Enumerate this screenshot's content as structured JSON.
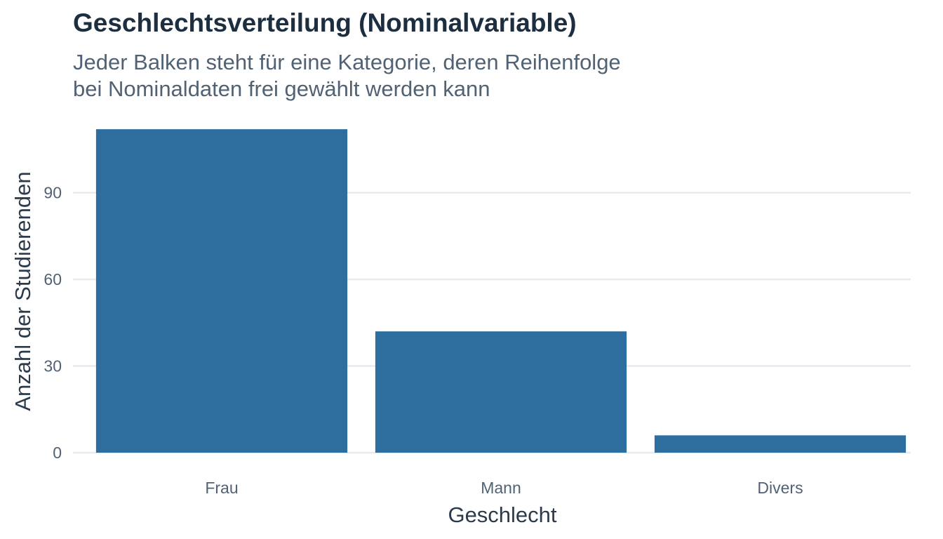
{
  "chart_data": {
    "type": "bar",
    "title": "Geschlechtsverteilung (Nominalvariable)",
    "subtitle": "Jeder Balken steht für eine Kategorie, deren Reihenfolge\nbei Nominaldaten frei gewählt werden kann",
    "categories": [
      "Frau",
      "Mann",
      "Divers"
    ],
    "values": [
      112,
      42,
      6
    ],
    "xlabel": "Geschlecht",
    "ylabel": "Anzahl der Studierenden",
    "ylim": [
      0,
      112
    ],
    "yticks": [
      0,
      30,
      60,
      90
    ],
    "grid": "horizontal",
    "legend": "none",
    "colors": {
      "bar": "#2e6e9e",
      "grid": "#e6ebf0",
      "title": "#1c2e40",
      "subtitle": "#516274",
      "tick": "#516274",
      "axis_title": "#2b3b4c"
    }
  }
}
